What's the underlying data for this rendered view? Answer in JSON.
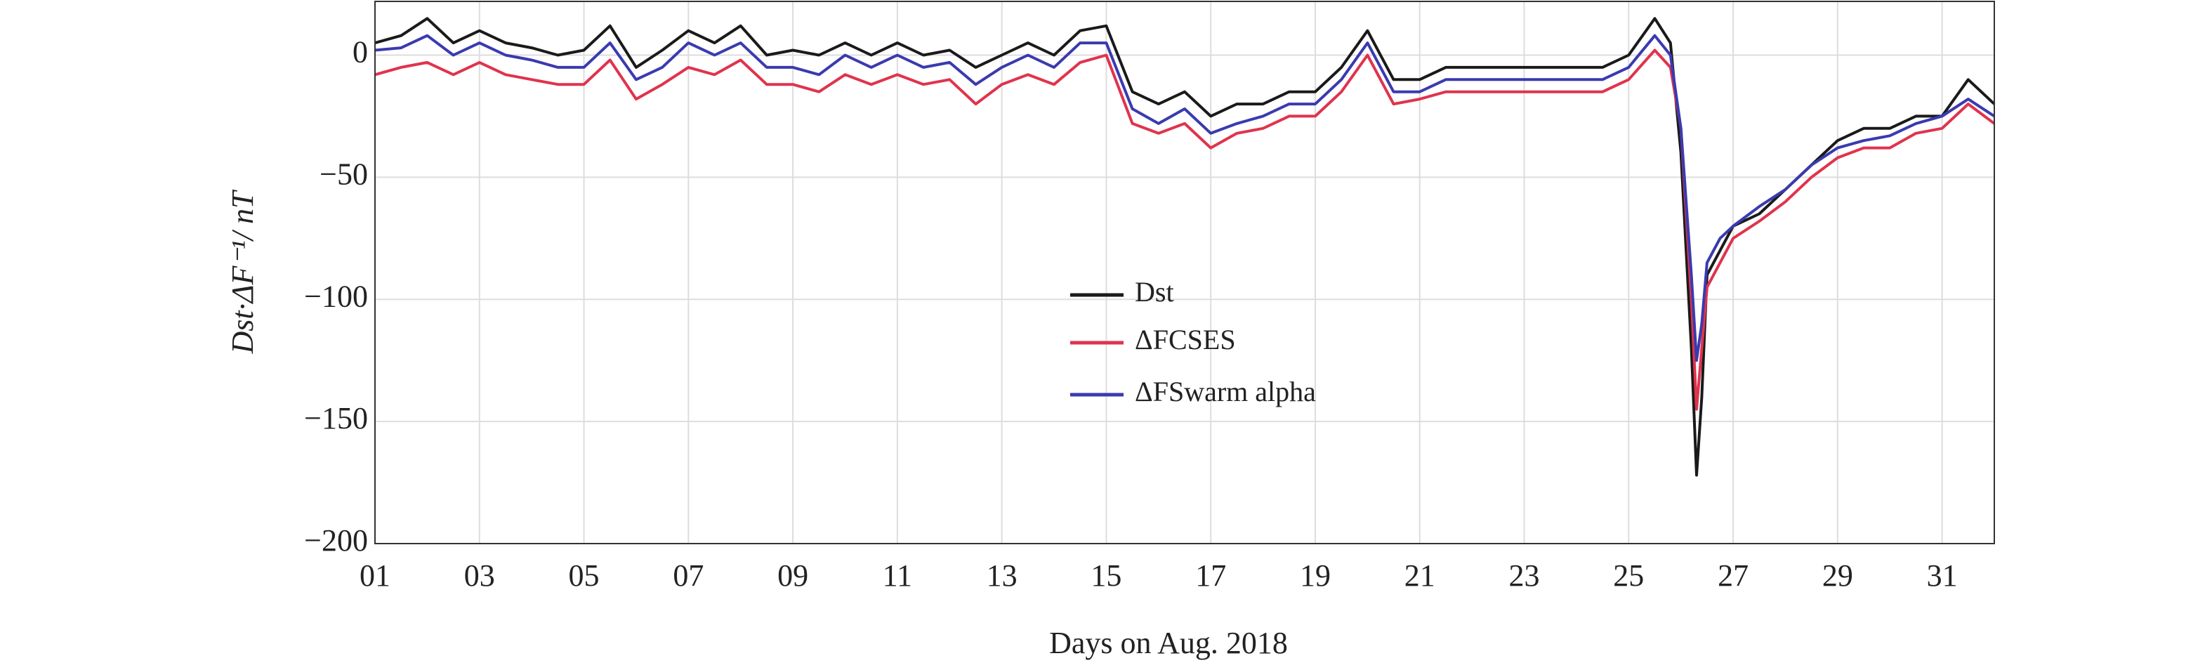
{
  "chart_data": {
    "type": "line",
    "x_label": "Days on Aug. 2018",
    "y_label": "Dst·ΔF⁻¹/ nT",
    "x": [
      1,
      1.5,
      2,
      2.5,
      3,
      3.5,
      4,
      4.5,
      5,
      5.5,
      6,
      6.5,
      7,
      7.5,
      8,
      8.5,
      9,
      9.5,
      10,
      10.5,
      11,
      11.5,
      12,
      12.5,
      13,
      13.5,
      14,
      14.5,
      15,
      15.5,
      16,
      16.5,
      17,
      17.5,
      18,
      18.5,
      19,
      19.5,
      20,
      20.5,
      21,
      21.5,
      22,
      22.5,
      23,
      23.5,
      24,
      24.5,
      25,
      25.5,
      25.8,
      26,
      26.2,
      26.3,
      26.4,
      26.5,
      26.75,
      27,
      27.5,
      28,
      28.5,
      29,
      29.5,
      30,
      30.5,
      31,
      31.5,
      32
    ],
    "series": [
      {
        "name": "Dst",
        "color": "#1a1a1a",
        "values": [
          5,
          8,
          15,
          5,
          10,
          5,
          3,
          0,
          2,
          12,
          -5,
          2,
          10,
          5,
          12,
          0,
          2,
          0,
          5,
          0,
          5,
          0,
          2,
          -5,
          0,
          5,
          0,
          10,
          12,
          -15,
          -20,
          -15,
          -25,
          -20,
          -20,
          -15,
          -15,
          -5,
          10,
          -10,
          -10,
          -5,
          -5,
          -5,
          -5,
          -5,
          -5,
          -5,
          0,
          15,
          5,
          -40,
          -120,
          -172,
          -140,
          -90,
          -80,
          -70,
          -65,
          -55,
          -45,
          -35,
          -30,
          -30,
          -25,
          -25,
          -10,
          -20
        ]
      },
      {
        "name": "ΔFCSES",
        "color": "#e0334d",
        "values": [
          -8,
          -5,
          -3,
          -8,
          -3,
          -8,
          -10,
          -12,
          -12,
          -2,
          -18,
          -12,
          -5,
          -8,
          -2,
          -12,
          -12,
          -15,
          -8,
          -12,
          -8,
          -12,
          -10,
          -20,
          -12,
          -8,
          -12,
          -3,
          0,
          -28,
          -32,
          -28,
          -38,
          -32,
          -30,
          -25,
          -25,
          -15,
          0,
          -20,
          -18,
          -15,
          -15,
          -15,
          -15,
          -15,
          -15,
          -15,
          -10,
          2,
          -5,
          -30,
          -100,
          -145,
          -120,
          -95,
          -85,
          -75,
          -68,
          -60,
          -50,
          -42,
          -38,
          -38,
          -32,
          -30,
          -20,
          -28
        ]
      },
      {
        "name": "ΔFSwarm alpha",
        "color": "#3a3ab0",
        "values": [
          2,
          3,
          8,
          0,
          5,
          0,
          -2,
          -5,
          -5,
          5,
          -10,
          -5,
          5,
          0,
          5,
          -5,
          -5,
          -8,
          0,
          -5,
          0,
          -5,
          -3,
          -12,
          -5,
          0,
          -5,
          5,
          5,
          -22,
          -28,
          -22,
          -32,
          -28,
          -25,
          -20,
          -20,
          -10,
          5,
          -15,
          -15,
          -10,
          -10,
          -10,
          -10,
          -10,
          -10,
          -10,
          -5,
          8,
          0,
          -30,
          -90,
          -125,
          -110,
          -85,
          -75,
          -70,
          -62,
          -55,
          -45,
          -38,
          -35,
          -33,
          -28,
          -25,
          -18,
          -25
        ]
      }
    ],
    "xlim": [
      1,
      32
    ],
    "ylim": [
      -200,
      22
    ],
    "xticks": [
      {
        "value": 1,
        "label": "01"
      },
      {
        "value": 3,
        "label": "03"
      },
      {
        "value": 5,
        "label": "05"
      },
      {
        "value": 7,
        "label": "07"
      },
      {
        "value": 9,
        "label": "09"
      },
      11,
      13,
      15,
      17,
      19,
      21,
      23,
      25,
      27,
      29,
      31
    ],
    "yticks": [
      {
        "value": -200,
        "label": "−200"
      },
      {
        "value": -150,
        "label": "−150"
      },
      {
        "value": -100,
        "label": "−100"
      },
      {
        "value": -50,
        "label": "−50"
      },
      0
    ],
    "grid": true
  }
}
